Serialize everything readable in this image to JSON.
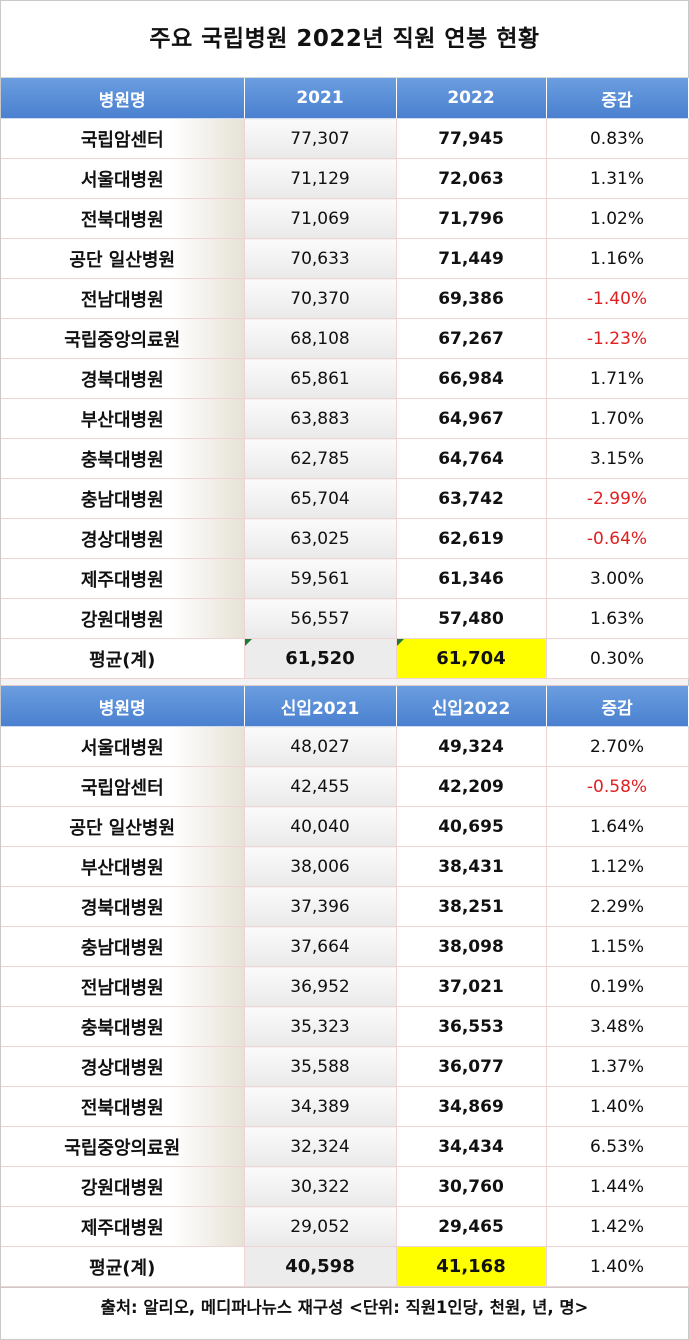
{
  "title": "주요 국립병원 2022년 직원 연봉 현황",
  "table1": {
    "headers": [
      "병원명",
      "2021",
      "2022",
      "증감"
    ],
    "rows": [
      {
        "name": "국립암센터",
        "v2021": "77,307",
        "v2022": "77,945",
        "change": "0.83%"
      },
      {
        "name": "서울대병원",
        "v2021": "71,129",
        "v2022": "72,063",
        "change": "1.31%"
      },
      {
        "name": "전북대병원",
        "v2021": "71,069",
        "v2022": "71,796",
        "change": "1.02%"
      },
      {
        "name": "공단 일산병원",
        "v2021": "70,633",
        "v2022": "71,449",
        "change": "1.16%"
      },
      {
        "name": "전남대병원",
        "v2021": "70,370",
        "v2022": "69,386",
        "change": "-1.40%"
      },
      {
        "name": "국립중앙의료원",
        "v2021": "68,108",
        "v2022": "67,267",
        "change": "-1.23%"
      },
      {
        "name": "경북대병원",
        "v2021": "65,861",
        "v2022": "66,984",
        "change": "1.71%"
      },
      {
        "name": "부산대병원",
        "v2021": "63,883",
        "v2022": "64,967",
        "change": "1.70%"
      },
      {
        "name": "충북대병원",
        "v2021": "62,785",
        "v2022": "64,764",
        "change": "3.15%"
      },
      {
        "name": "충남대병원",
        "v2021": "65,704",
        "v2022": "63,742",
        "change": "-2.99%"
      },
      {
        "name": "경상대병원",
        "v2021": "63,025",
        "v2022": "62,619",
        "change": "-0.64%"
      },
      {
        "name": "제주대병원",
        "v2021": "59,561",
        "v2022": "61,346",
        "change": "3.00%"
      },
      {
        "name": "강원대병원",
        "v2021": "56,557",
        "v2022": "57,480",
        "change": "1.63%"
      }
    ],
    "average": {
      "name": "평균(계)",
      "v2021": "61,520",
      "v2022": "61,704",
      "change": "0.30%"
    }
  },
  "table2": {
    "headers": [
      "병원명",
      "신입2021",
      "신입2022",
      "증감"
    ],
    "rows": [
      {
        "name": "서울대병원",
        "v2021": "48,027",
        "v2022": "49,324",
        "change": "2.70%"
      },
      {
        "name": "국립암센터",
        "v2021": "42,455",
        "v2022": "42,209",
        "change": "-0.58%"
      },
      {
        "name": "공단 일산병원",
        "v2021": "40,040",
        "v2022": "40,695",
        "change": "1.64%"
      },
      {
        "name": "부산대병원",
        "v2021": "38,006",
        "v2022": "38,431",
        "change": "1.12%"
      },
      {
        "name": "경북대병원",
        "v2021": "37,396",
        "v2022": "38,251",
        "change": "2.29%"
      },
      {
        "name": "충남대병원",
        "v2021": "37,664",
        "v2022": "38,098",
        "change": "1.15%"
      },
      {
        "name": "전남대병원",
        "v2021": "36,952",
        "v2022": "37,021",
        "change": "0.19%"
      },
      {
        "name": "충북대병원",
        "v2021": "35,323",
        "v2022": "36,553",
        "change": "3.48%"
      },
      {
        "name": "경상대병원",
        "v2021": "35,588",
        "v2022": "36,077",
        "change": "1.37%"
      },
      {
        "name": "전북대병원",
        "v2021": "34,389",
        "v2022": "34,869",
        "change": "1.40%"
      },
      {
        "name": "국립중앙의료원",
        "v2021": "32,324",
        "v2022": "34,434",
        "change": "6.53%"
      },
      {
        "name": "강원대병원",
        "v2021": "30,322",
        "v2022": "30,760",
        "change": "1.44%"
      },
      {
        "name": "제주대병원",
        "v2021": "29,052",
        "v2022": "29,465",
        "change": "1.42%"
      }
    ],
    "average": {
      "name": "평균(계)",
      "v2021": "40,598",
      "v2022": "41,168",
      "change": "1.40%"
    }
  },
  "source": "출처: 알리오, 메디파나뉴스 재구성 <단위: 직원1인당, 천원, 년, 명>",
  "colors": {
    "header_bg": "#5b8fd8",
    "negative": "#e02020",
    "highlight": "#ffff00"
  }
}
